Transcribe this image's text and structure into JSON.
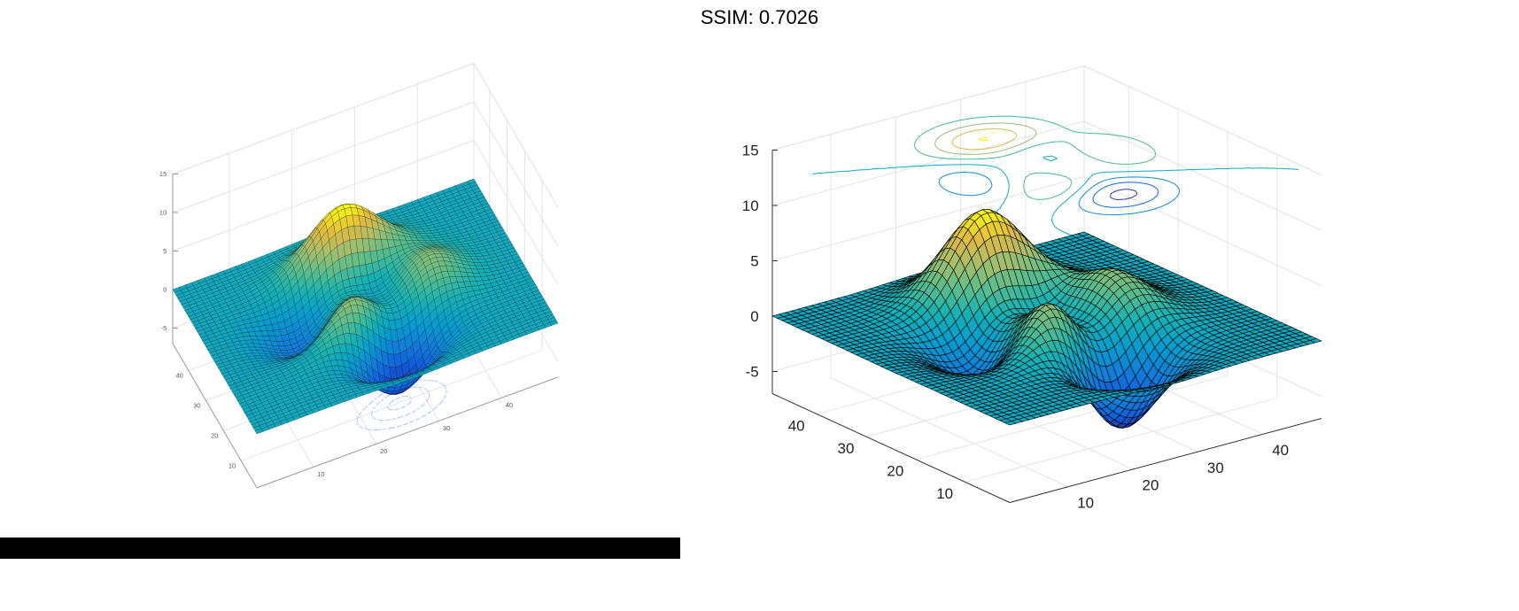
{
  "title": "SSIM: 0.7026",
  "chart_data": [
    {
      "type": "surface",
      "surface": "peaks",
      "grid_size": 49,
      "xlim": [
        1,
        49
      ],
      "ylim": [
        1,
        49
      ],
      "zlim": [
        -7,
        15
      ],
      "xticks": [
        "10",
        "20",
        "30",
        "40"
      ],
      "yticks": [
        "10",
        "20",
        "30",
        "40"
      ],
      "zticks": [
        "-5",
        "0",
        "5",
        "10",
        "15"
      ],
      "contour_plane": "floor",
      "contour_levels": [
        -6,
        -4,
        -2
      ],
      "grid": true
    },
    {
      "type": "surface",
      "surface": "peaks",
      "grid_size": 49,
      "xlim": [
        1,
        49
      ],
      "ylim": [
        1,
        49
      ],
      "zlim": [
        -7,
        15
      ],
      "xticks": [
        "10",
        "20",
        "30",
        "40"
      ],
      "yticks": [
        "10",
        "20",
        "30",
        "40"
      ],
      "zticks": [
        "-5",
        "0",
        "5",
        "10",
        "15"
      ],
      "contour_plane": "top",
      "contour_levels": [
        -6,
        -4,
        -2,
        0,
        2,
        4,
        6,
        8
      ],
      "grid": true
    }
  ]
}
